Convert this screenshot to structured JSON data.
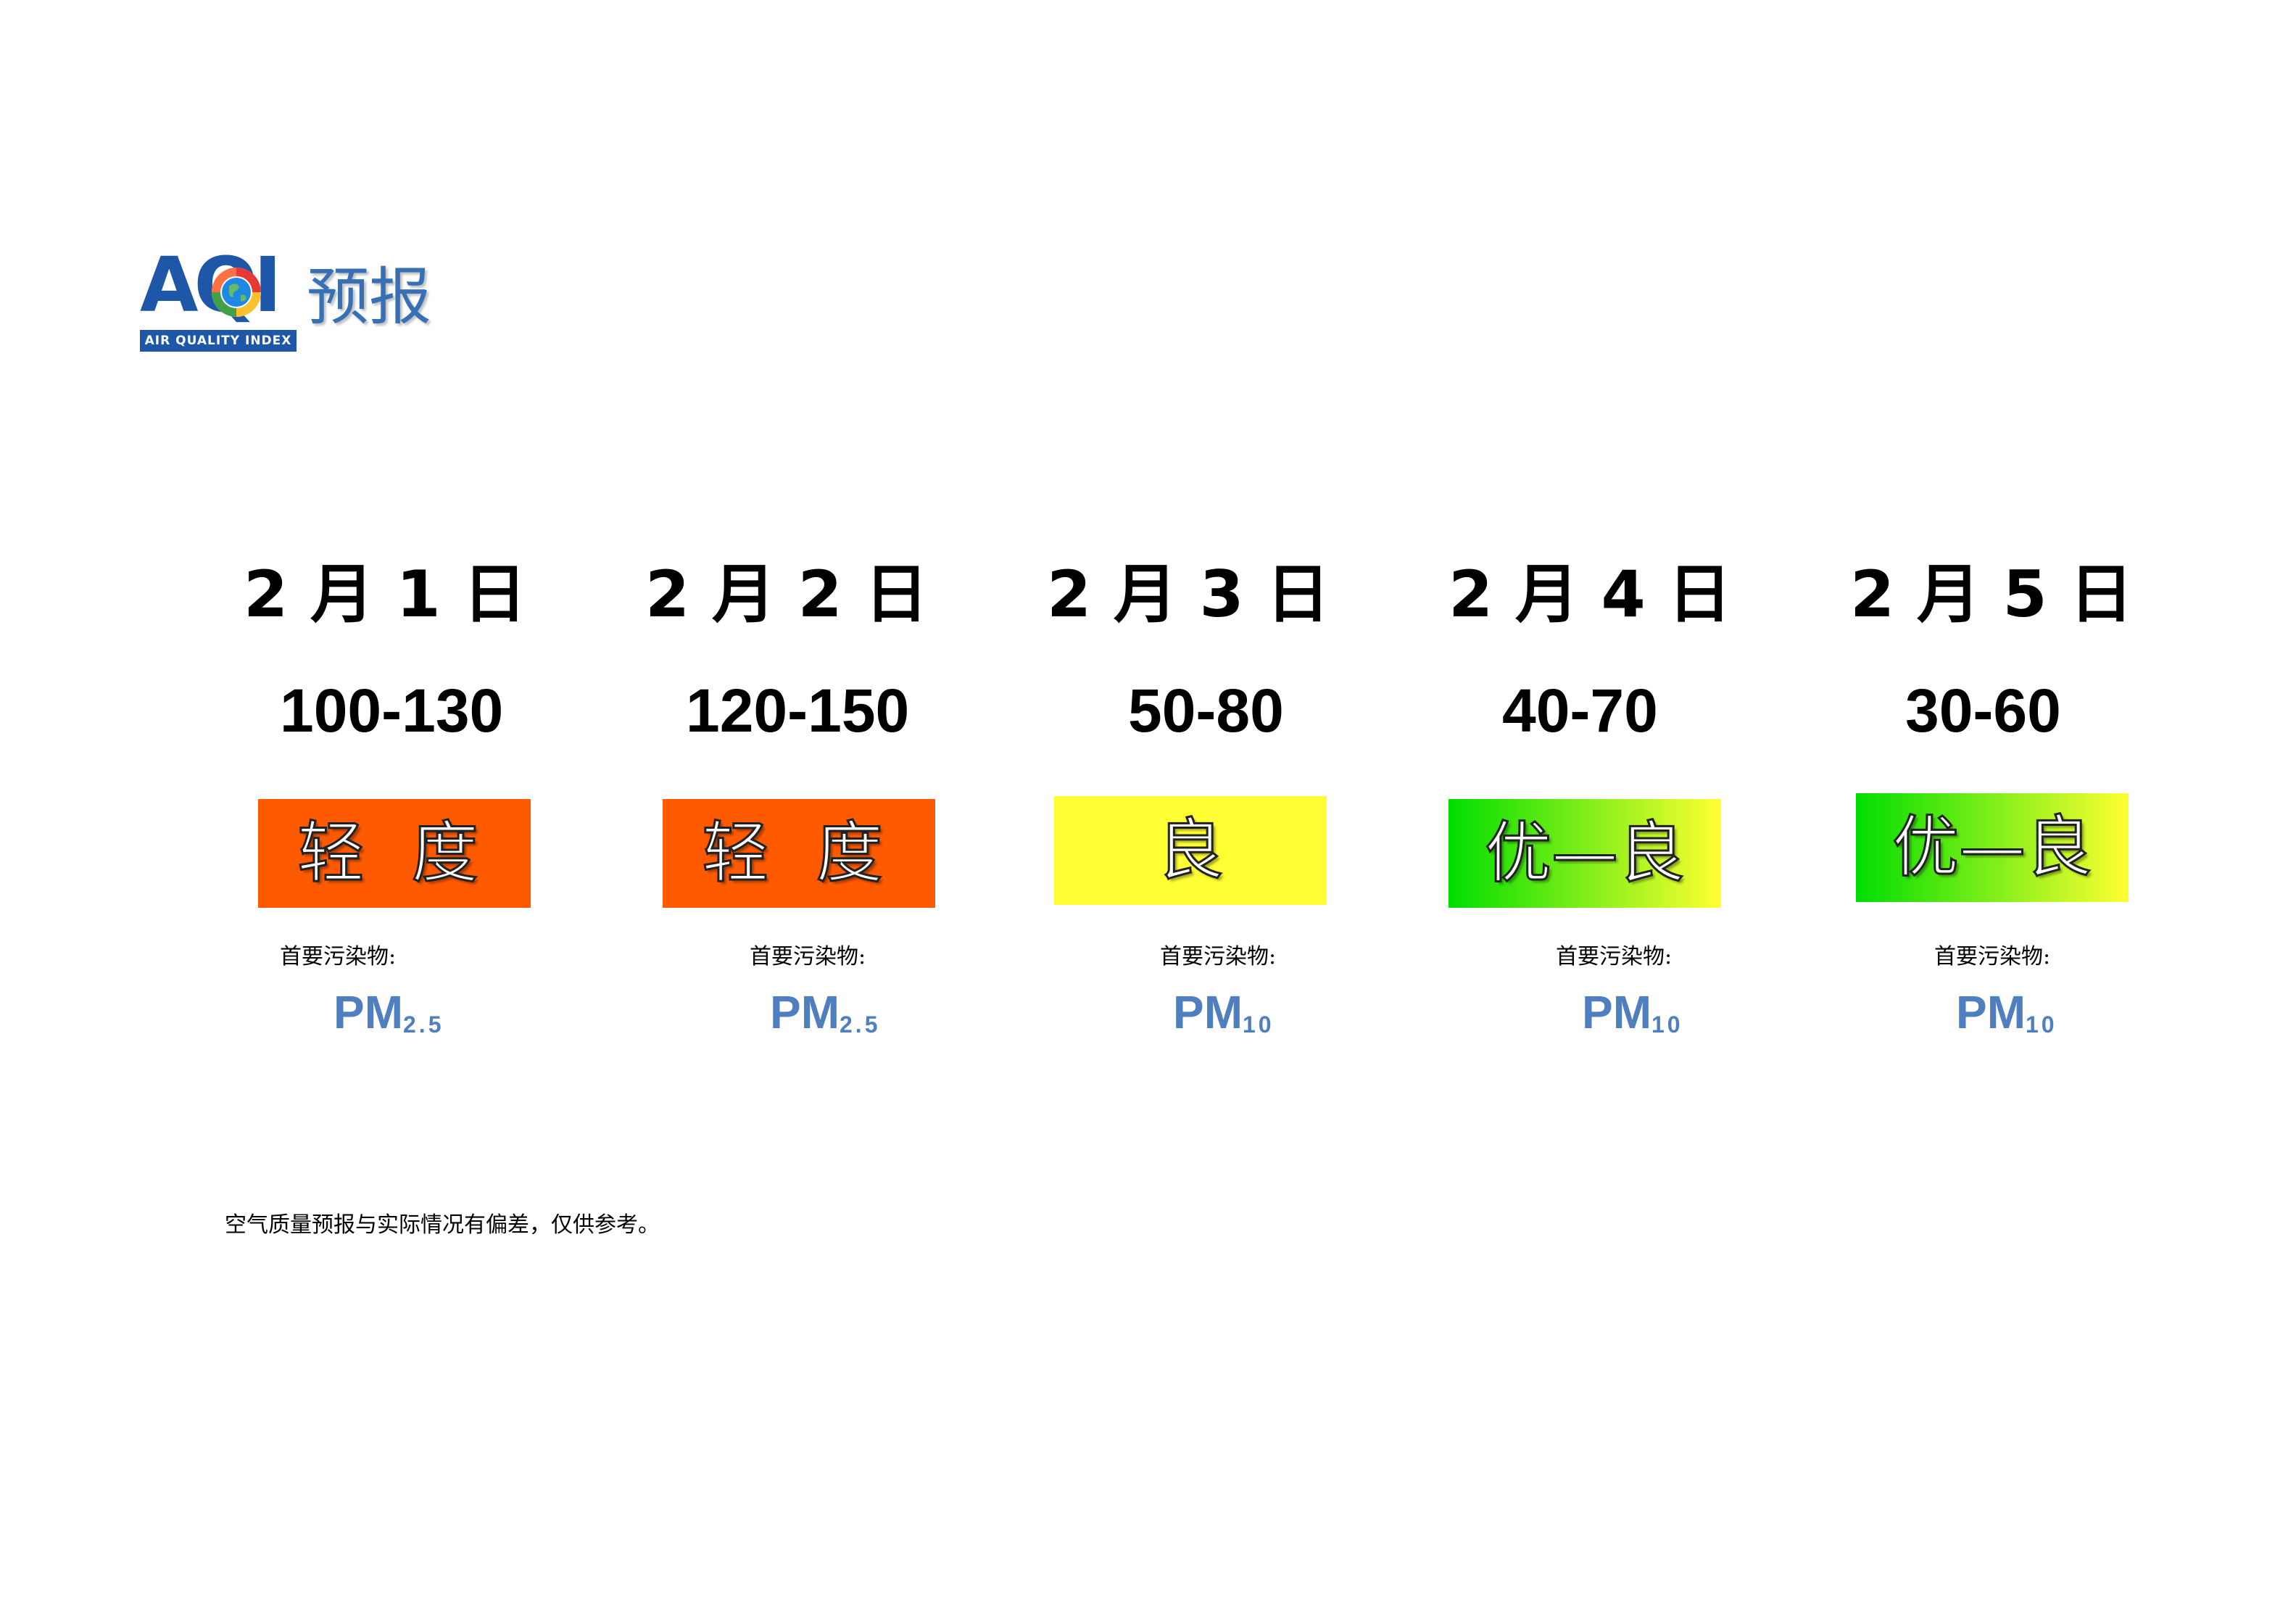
{
  "header": {
    "logo_letters": "AQI",
    "logo_band_text": "AIR QUALITY INDEX",
    "title": "预报"
  },
  "forecast": [
    {
      "date": "2 月 1 日",
      "range": "100-130",
      "level": "轻 度",
      "level_color": "#ff5a00",
      "pollutant_label": "首要污染物:",
      "pollutant": "PM",
      "pollutant_sub": "2.5"
    },
    {
      "date": "2 月 2 日",
      "range": "120-150",
      "level": "轻 度",
      "level_color": "#ff5a00",
      "pollutant_label": "首要污染物:",
      "pollutant": "PM",
      "pollutant_sub": "2.5"
    },
    {
      "date": "2 月 3 日",
      "range": "50-80",
      "level": "良",
      "level_color": "#ffff33",
      "pollutant_label": "首要污染物:",
      "pollutant": "PM",
      "pollutant_sub": "10"
    },
    {
      "date": "2 月 4 日",
      "range": "40-70",
      "level": "优—良",
      "level_color_start": "#00dd00",
      "level_color_end": "#ffff33",
      "pollutant_label": "首要污染物:",
      "pollutant": "PM",
      "pollutant_sub": "10"
    },
    {
      "date": "2 月 5 日",
      "range": "30-60",
      "level": "优—良",
      "level_color_start": "#00dd00",
      "level_color_end": "#ffff33",
      "pollutant_label": "首要污染物:",
      "pollutant": "PM",
      "pollutant_sub": "10"
    }
  ],
  "footnote": "空气质量预报与实际情况有偏差，仅供参考。"
}
